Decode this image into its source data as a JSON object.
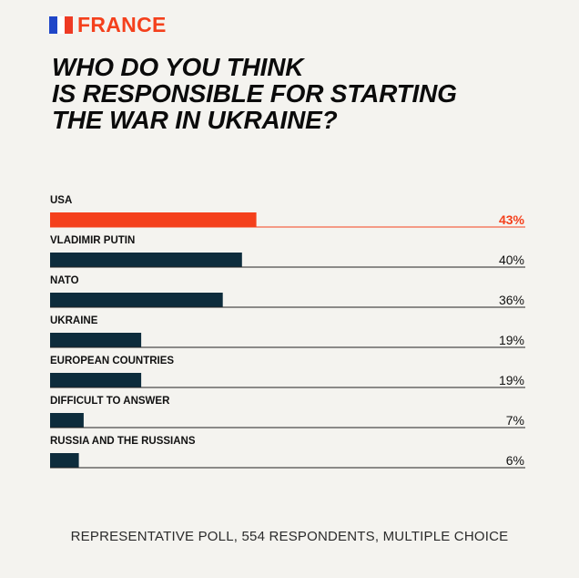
{
  "header": {
    "country": "FRANCE",
    "flag_colors": [
      "#1f46c8",
      "#ffffff",
      "#ee3a24"
    ]
  },
  "title_lines": [
    "WHO DO YOU THINK",
    "IS RESPONSIBLE FOR STARTING",
    "THE WAR IN UKRAINE?"
  ],
  "colors": {
    "accent": "#f4401c",
    "bar": "#0d2c3c",
    "baseline": "#222222"
  },
  "chart_data": {
    "type": "bar",
    "orientation": "horizontal",
    "title": "WHO DO YOU THINK IS RESPONSIBLE FOR STARTING THE WAR IN UKRAINE?",
    "categories": [
      "USA",
      "VLADIMIR PUTIN",
      "NATO",
      "UKRAINE",
      "EUROPEAN COUNTRIES",
      "DIFFICULT TO ANSWER",
      "RUSSIA AND THE RUSSIANS"
    ],
    "values": [
      43,
      40,
      36,
      19,
      19,
      7,
      6
    ],
    "value_labels": [
      "43%",
      "40%",
      "36%",
      "19%",
      "19%",
      "7%",
      "6%"
    ],
    "highlighted_index": 0,
    "unit": "%",
    "xlim": [
      0,
      100
    ]
  },
  "footnote": "REPRESENTATIVE POLL, 554 RESPONDENTS, MULTIPLE CHOICE"
}
